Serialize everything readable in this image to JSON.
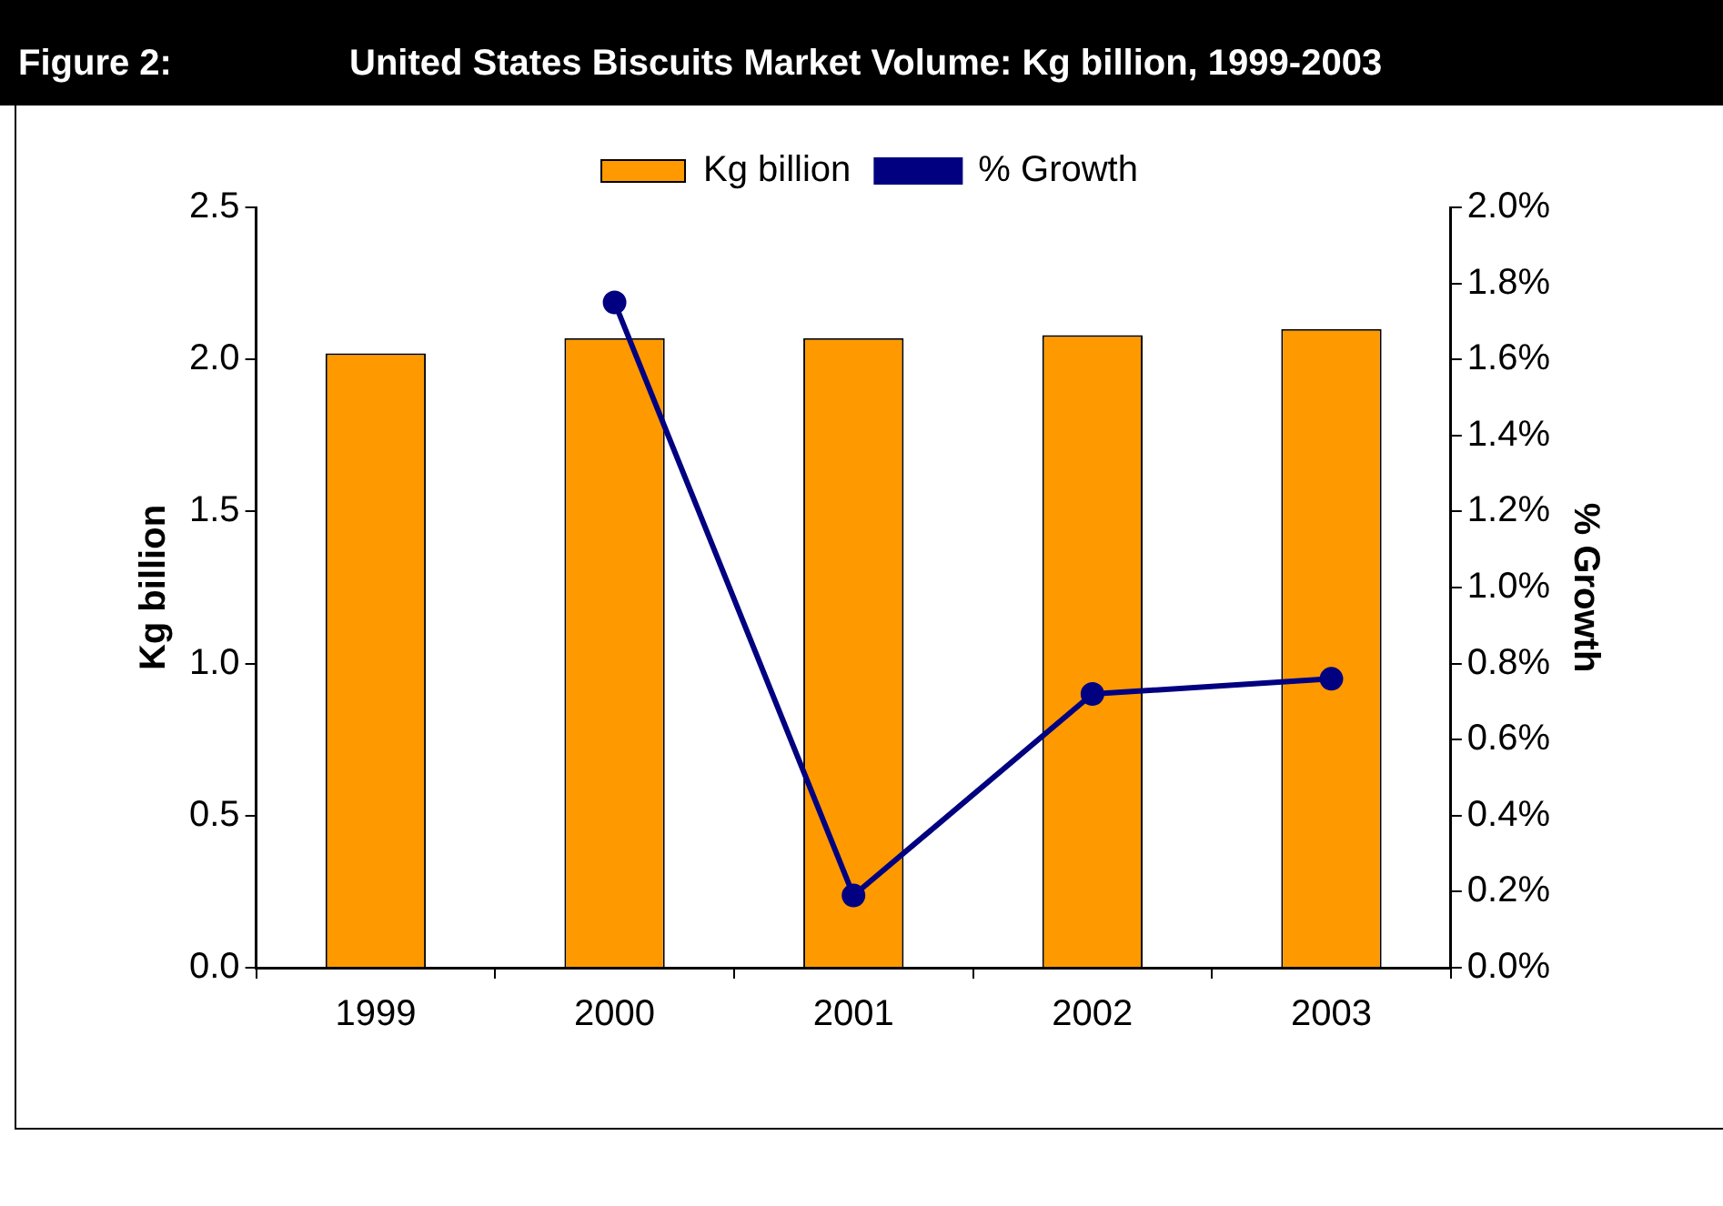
{
  "chart_data": {
    "type": "bar",
    "title": "United States Biscuits Market Volume: Kg billion, 1999-2003",
    "annotations": [
      "Figure 2:"
    ],
    "categories": [
      "1999",
      "2000",
      "2001",
      "2002",
      "2003"
    ],
    "series": [
      {
        "name": "Kg billion",
        "color": "#ff9900",
        "values": [
          2.02,
          2.07,
          2.07,
          2.08,
          2.1
        ]
      },
      {
        "name": "% Growth",
        "type": "line",
        "axis": "y2",
        "color": "#000080",
        "marker": "circle",
        "values": [
          null,
          1.75,
          0.19,
          0.72,
          0.76
        ]
      }
    ],
    "ylabel": "Kg billion",
    "y2label": "% Growth",
    "ylim": [
      0,
      2.5
    ],
    "yticks": [
      {
        "value": 0,
        "label": "0.0"
      },
      {
        "value": 0.5,
        "label": "0.5"
      },
      {
        "value": 1,
        "label": "1.0"
      },
      {
        "value": 1.5,
        "label": "1.5"
      },
      {
        "value": 2,
        "label": "2.0"
      },
      {
        "value": 2.5,
        "label": "2.5"
      }
    ],
    "y2lim": [
      0,
      2
    ],
    "y2ticks": [
      {
        "value": 0,
        "label": "0.0%"
      },
      {
        "value": 0.2,
        "label": "0.2%"
      },
      {
        "value": 0.4,
        "label": "0.4%"
      },
      {
        "value": 0.6,
        "label": "0.6%"
      },
      {
        "value": 0.8,
        "label": "0.8%"
      },
      {
        "value": 1,
        "label": "1.0%"
      },
      {
        "value": 1.2,
        "label": "1.2%"
      },
      {
        "value": 1.4,
        "label": "1.4%"
      },
      {
        "value": 1.6,
        "label": "1.6%"
      },
      {
        "value": 1.8,
        "label": "1.8%"
      },
      {
        "value": 2,
        "label": "2.0%"
      }
    ],
    "legend": "top",
    "grid": false
  }
}
